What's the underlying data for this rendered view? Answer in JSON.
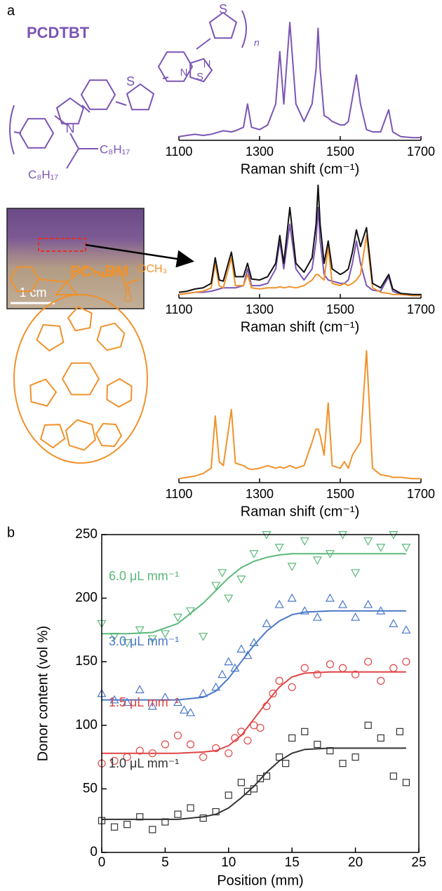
{
  "panel_labels": [
    "a",
    "b"
  ],
  "structures": {
    "pcdtbt": {
      "name": "PCDTBT",
      "atoms": [
        "N",
        "S",
        "N",
        "S",
        "N",
        "S"
      ],
      "chains": [
        "C₈H₁₇",
        "C₈H₁₇"
      ],
      "repeat": "n"
    },
    "pc70bm": {
      "name": "PC₇₀BM",
      "atoms": [
        "OCH₃",
        "O"
      ]
    }
  },
  "photo": {
    "scale_label": "1 cm"
  },
  "chart_data": [
    {
      "type": "line",
      "xlabel": "Raman shift (cm⁻¹)",
      "xlim": [
        1100,
        1700
      ],
      "xticks": [
        1100,
        1300,
        1500,
        1700
      ],
      "ylim": [
        0,
        1
      ],
      "x": [
        1100,
        1120,
        1140,
        1160,
        1180,
        1190,
        1200,
        1210,
        1230,
        1240,
        1260,
        1270,
        1280,
        1300,
        1320,
        1340,
        1350,
        1360,
        1375,
        1390,
        1410,
        1430,
        1440,
        1445,
        1450,
        1460,
        1470,
        1480,
        1500,
        1510,
        1520,
        1530,
        1540,
        1550,
        1565,
        1580,
        1600,
        1620,
        1630,
        1650,
        1680,
        1700
      ],
      "series": [
        {
          "color": "#7b55b5",
          "values": [
            0.02,
            0.03,
            0.04,
            0.03,
            0.04,
            0.05,
            0.06,
            0.07,
            0.06,
            0.07,
            0.1,
            0.3,
            0.1,
            0.08,
            0.12,
            0.3,
            0.75,
            0.3,
            1.0,
            0.3,
            0.15,
            0.3,
            0.6,
            0.95,
            0.6,
            0.2,
            0.18,
            0.15,
            0.12,
            0.12,
            0.15,
            0.35,
            0.55,
            0.3,
            0.08,
            0.06,
            0.06,
            0.25,
            0.06,
            0.02,
            0.01,
            0.01
          ]
        }
      ]
    },
    {
      "type": "line",
      "xlabel": "Raman shift (cm⁻¹)",
      "xlim": [
        1100,
        1700
      ],
      "xticks": [
        1100,
        1300,
        1500,
        1700
      ],
      "ylim": [
        0,
        1
      ],
      "x": [
        1100,
        1120,
        1140,
        1160,
        1180,
        1190,
        1200,
        1210,
        1230,
        1240,
        1260,
        1270,
        1280,
        1300,
        1320,
        1340,
        1350,
        1360,
        1375,
        1390,
        1410,
        1430,
        1440,
        1445,
        1450,
        1460,
        1470,
        1480,
        1500,
        1510,
        1520,
        1530,
        1540,
        1550,
        1565,
        1580,
        1600,
        1620,
        1630,
        1650,
        1680,
        1700
      ],
      "series": [
        {
          "color": "#7b55b5",
          "values": [
            0.02,
            0.03,
            0.04,
            0.04,
            0.05,
            0.06,
            0.07,
            0.08,
            0.08,
            0.08,
            0.1,
            0.25,
            0.1,
            0.1,
            0.12,
            0.25,
            0.5,
            0.25,
            0.65,
            0.25,
            0.15,
            0.25,
            0.5,
            0.8,
            0.5,
            0.2,
            0.15,
            0.14,
            0.12,
            0.12,
            0.15,
            0.3,
            0.5,
            0.3,
            0.1,
            0.06,
            0.05,
            0.18,
            0.05,
            0.02,
            0.01,
            0.01
          ]
        },
        {
          "color": "#f0922b",
          "values": [
            0.02,
            0.03,
            0.04,
            0.05,
            0.08,
            0.3,
            0.1,
            0.08,
            0.35,
            0.1,
            0.1,
            0.2,
            0.08,
            0.07,
            0.08,
            0.08,
            0.09,
            0.08,
            0.09,
            0.08,
            0.1,
            0.15,
            0.2,
            0.2,
            0.18,
            0.15,
            0.45,
            0.12,
            0.1,
            0.12,
            0.1,
            0.12,
            0.15,
            0.2,
            0.55,
            0.08,
            0.04,
            0.03,
            0.02,
            0.02,
            0.01,
            0.01
          ]
        },
        {
          "color": "#111111",
          "values": [
            0.04,
            0.05,
            0.07,
            0.08,
            0.12,
            0.35,
            0.15,
            0.14,
            0.4,
            0.18,
            0.18,
            0.3,
            0.16,
            0.15,
            0.18,
            0.3,
            0.55,
            0.3,
            0.8,
            0.3,
            0.22,
            0.35,
            0.65,
            1.0,
            0.65,
            0.3,
            0.5,
            0.25,
            0.2,
            0.22,
            0.25,
            0.4,
            0.6,
            0.45,
            0.62,
            0.12,
            0.08,
            0.2,
            0.07,
            0.03,
            0.02,
            0.02
          ]
        }
      ]
    },
    {
      "type": "line",
      "xlabel": "Raman shift (cm⁻¹)",
      "xlim": [
        1100,
        1700
      ],
      "xticks": [
        1100,
        1300,
        1500,
        1700
      ],
      "ylim": [
        0,
        1
      ],
      "x": [
        1100,
        1120,
        1140,
        1160,
        1180,
        1190,
        1200,
        1210,
        1230,
        1240,
        1260,
        1270,
        1280,
        1300,
        1320,
        1340,
        1350,
        1360,
        1375,
        1390,
        1410,
        1430,
        1440,
        1445,
        1450,
        1460,
        1470,
        1480,
        1500,
        1510,
        1520,
        1530,
        1540,
        1550,
        1565,
        1580,
        1600,
        1620,
        1630,
        1650,
        1680,
        1700
      ],
      "series": [
        {
          "color": "#f0922b",
          "values": [
            0.02,
            0.03,
            0.04,
            0.06,
            0.1,
            0.5,
            0.15,
            0.12,
            0.55,
            0.14,
            0.12,
            0.1,
            0.09,
            0.1,
            0.12,
            0.1,
            0.11,
            0.1,
            0.12,
            0.1,
            0.12,
            0.3,
            0.4,
            0.4,
            0.35,
            0.2,
            0.6,
            0.12,
            0.1,
            0.15,
            0.1,
            0.2,
            0.25,
            0.3,
            1.0,
            0.1,
            0.05,
            0.04,
            0.03,
            0.03,
            0.02,
            0.02
          ]
        }
      ]
    },
    {
      "type": "scatter",
      "xlabel": "Position (mm)",
      "ylabel": "Donor content (vol %)",
      "xlim": [
        0,
        25
      ],
      "xticks": [
        0,
        5,
        10,
        15,
        20,
        25
      ],
      "ylim": [
        0,
        250
      ],
      "yticks": [
        0,
        50,
        100,
        150,
        200,
        250
      ],
      "series": [
        {
          "name": "1.0 μL mm⁻¹",
          "color": "#333333",
          "marker": "square",
          "x": [
            0,
            1,
            2,
            3,
            4,
            5,
            6,
            7,
            8,
            9,
            10,
            11,
            11.5,
            12,
            12.5,
            13,
            14,
            14.5,
            15,
            16,
            17,
            18,
            19,
            20,
            21,
            22,
            23,
            23.5,
            24
          ],
          "values": [
            25,
            20,
            22,
            28,
            18,
            24,
            30,
            35,
            27,
            32,
            45,
            55,
            48,
            50,
            58,
            60,
            75,
            70,
            90,
            95,
            85,
            80,
            70,
            75,
            100,
            90,
            60,
            95,
            55
          ],
          "fit": {
            "x": [
              0,
              2,
              4,
              6,
              8,
              9,
              10,
              11,
              12,
              13,
              14,
              15,
              16,
              18,
              20,
              22,
              24
            ],
            "values": [
              26,
              26,
              26,
              26,
              28,
              30,
              35,
              43,
              52,
              63,
              72,
              78,
              81,
              82,
              82,
              82,
              82
            ]
          }
        },
        {
          "name": "1.5 μL mm⁻¹",
          "color": "#e04545",
          "marker": "circle",
          "x": [
            0,
            1,
            2,
            3,
            4,
            5,
            6,
            7,
            8,
            9,
            10,
            10.5,
            11,
            11.5,
            12,
            12.5,
            13,
            13.5,
            14,
            15,
            16,
            17,
            18,
            19,
            20,
            21,
            22,
            23,
            24
          ],
          "values": [
            70,
            72,
            75,
            80,
            78,
            85,
            92,
            85,
            75,
            82,
            78,
            90,
            95,
            88,
            100,
            98,
            115,
            125,
            135,
            130,
            145,
            140,
            148,
            145,
            140,
            150,
            135,
            145,
            150
          ],
          "fit": {
            "x": [
              0,
              2,
              4,
              6,
              8,
              9,
              10,
              11,
              12,
              13,
              14,
              15,
              16,
              18,
              20,
              22,
              24
            ],
            "values": [
              78,
              78,
              78,
              78,
              79,
              80,
              84,
              92,
              105,
              118,
              130,
              138,
              141,
              142,
              142,
              142,
              142
            ]
          }
        },
        {
          "name": "3.0 μL mm⁻¹",
          "color": "#4a78c8",
          "marker": "triangle-up",
          "x": [
            0,
            1,
            2,
            3,
            4,
            5,
            6,
            6.5,
            7,
            8,
            9,
            9.5,
            10,
            10.5,
            11,
            11.5,
            12,
            13,
            14,
            15,
            16,
            17,
            18,
            19,
            20,
            21,
            22,
            23,
            24
          ],
          "values": [
            125,
            120,
            118,
            128,
            115,
            122,
            118,
            112,
            110,
            125,
            130,
            140,
            150,
            145,
            160,
            155,
            165,
            180,
            195,
            200,
            190,
            185,
            200,
            195,
            185,
            195,
            190,
            180,
            175
          ],
          "fit": {
            "x": [
              0,
              2,
              4,
              6,
              8,
              9,
              10,
              11,
              12,
              13,
              14,
              15,
              16,
              18,
              20,
              22,
              24
            ],
            "values": [
              120,
              120,
              120,
              120,
              122,
              127,
              137,
              150,
              163,
              174,
              182,
              187,
              189,
              190,
              190,
              190,
              190
            ]
          }
        },
        {
          "name": "6.0 μL mm⁻¹",
          "color": "#5bb87a",
          "marker": "triangle-down",
          "x": [
            0,
            1,
            2,
            3,
            4,
            5,
            6,
            7,
            8,
            9,
            9.5,
            10,
            11,
            12,
            13,
            14,
            15,
            16,
            17,
            18,
            19,
            20,
            21,
            22,
            23,
            24
          ],
          "values": [
            180,
            170,
            165,
            175,
            168,
            172,
            185,
            190,
            170,
            210,
            220,
            200,
            215,
            235,
            250,
            240,
            225,
            245,
            230,
            235,
            250,
            220,
            245,
            240,
            250,
            240
          ],
          "fit": {
            "x": [
              0,
              2,
              4,
              6,
              8,
              9,
              10,
              11,
              12,
              13,
              14,
              15,
              16,
              18,
              20,
              22,
              24
            ],
            "values": [
              172,
              172,
              173,
              180,
              196,
              206,
              216,
              224,
              229,
              232,
              234,
              235,
              235,
              235,
              235,
              235,
              235
            ]
          }
        }
      ]
    }
  ]
}
